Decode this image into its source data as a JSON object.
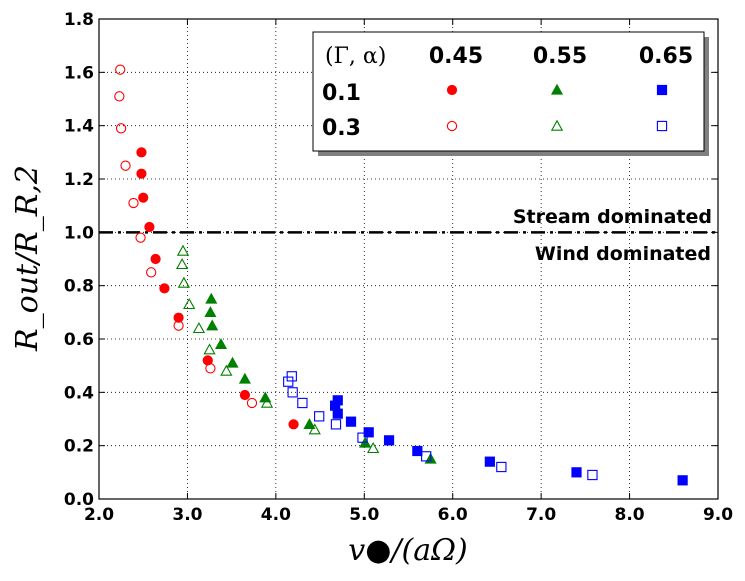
{
  "chart_data": {
    "type": "scatter",
    "xlabel": "v●/(aΩ)",
    "ylabel": "R_out/R_R,2",
    "xlim": [
      2.0,
      9.0
    ],
    "ylim": [
      0.0,
      1.8
    ],
    "xticks": [
      2.0,
      3.0,
      4.0,
      5.0,
      6.0,
      7.0,
      8.0,
      9.0
    ],
    "xtick_labels": [
      "2.0",
      "3.0",
      "4.0",
      "5.0",
      "6.0",
      "7.0",
      "8.0",
      "9.0"
    ],
    "yticks": [
      0.0,
      0.2,
      0.4,
      0.6,
      0.8,
      1.0,
      1.2,
      1.4,
      1.6,
      1.8
    ],
    "ytick_labels": [
      "0.0",
      "0.2",
      "0.4",
      "0.6",
      "0.8",
      "1.0",
      "1.2",
      "1.4",
      "1.6",
      "1.8"
    ],
    "grid": true,
    "reference_line": {
      "y": 1.0,
      "style": "dash-dot"
    },
    "annotations": [
      "Stream dominated",
      "Wind dominated"
    ],
    "legend": {
      "placement": "top-right",
      "header": "(Γ, α)",
      "columns": [
        "0.45",
        "0.55",
        "0.65"
      ],
      "rows": [
        "0.1",
        "0.3"
      ]
    },
    "series": [
      {
        "name": "Γ=0.45, α=0.1",
        "marker": "circle",
        "filled": true,
        "color": "#ff0000",
        "points": [
          [
            2.48,
            1.3
          ],
          [
            2.48,
            1.22
          ],
          [
            2.5,
            1.13
          ],
          [
            2.57,
            1.02
          ],
          [
            2.64,
            0.9
          ],
          [
            2.74,
            0.79
          ],
          [
            2.9,
            0.68
          ],
          [
            3.23,
            0.52
          ],
          [
            3.65,
            0.39
          ],
          [
            4.2,
            0.28
          ]
        ]
      },
      {
        "name": "Γ=0.45, α=0.3",
        "marker": "circle",
        "filled": false,
        "color": "#ff0000",
        "points": [
          [
            2.24,
            1.61
          ],
          [
            2.23,
            1.51
          ],
          [
            2.25,
            1.39
          ],
          [
            2.3,
            1.25
          ],
          [
            2.39,
            1.11
          ],
          [
            2.47,
            0.98
          ],
          [
            2.59,
            0.85
          ],
          [
            2.9,
            0.65
          ],
          [
            3.26,
            0.49
          ],
          [
            3.73,
            0.36
          ]
        ]
      },
      {
        "name": "Γ=0.55, α=0.1",
        "marker": "triangle",
        "filled": true,
        "color": "#008000",
        "points": [
          [
            3.27,
            0.75
          ],
          [
            3.26,
            0.7
          ],
          [
            3.28,
            0.65
          ],
          [
            3.38,
            0.58
          ],
          [
            3.51,
            0.51
          ],
          [
            3.65,
            0.45
          ],
          [
            3.88,
            0.38
          ],
          [
            4.38,
            0.28
          ],
          [
            5.01,
            0.21
          ],
          [
            5.75,
            0.15
          ]
        ]
      },
      {
        "name": "Γ=0.55, α=0.3",
        "marker": "triangle",
        "filled": false,
        "color": "#008000",
        "points": [
          [
            2.95,
            0.93
          ],
          [
            2.94,
            0.88
          ],
          [
            2.96,
            0.81
          ],
          [
            3.02,
            0.73
          ],
          [
            3.13,
            0.64
          ],
          [
            3.25,
            0.56
          ],
          [
            3.44,
            0.48
          ],
          [
            3.9,
            0.36
          ],
          [
            4.44,
            0.26
          ],
          [
            5.1,
            0.19
          ]
        ]
      },
      {
        "name": "Γ=0.65, α=0.1",
        "marker": "square",
        "filled": true,
        "color": "#0000ff",
        "points": [
          [
            4.7,
            0.37
          ],
          [
            4.67,
            0.35
          ],
          [
            4.7,
            0.32
          ],
          [
            4.85,
            0.29
          ],
          [
            5.05,
            0.25
          ],
          [
            5.28,
            0.22
          ],
          [
            5.6,
            0.18
          ],
          [
            6.42,
            0.14
          ],
          [
            7.4,
            0.1
          ],
          [
            8.6,
            0.07
          ]
        ]
      },
      {
        "name": "Γ=0.65, α=0.3",
        "marker": "square",
        "filled": false,
        "color": "#0000ff",
        "points": [
          [
            4.18,
            0.46
          ],
          [
            4.14,
            0.44
          ],
          [
            4.19,
            0.4
          ],
          [
            4.3,
            0.36
          ],
          [
            4.49,
            0.31
          ],
          [
            4.68,
            0.28
          ],
          [
            4.98,
            0.23
          ],
          [
            5.7,
            0.16
          ],
          [
            6.55,
            0.12
          ],
          [
            7.58,
            0.09
          ]
        ]
      }
    ]
  }
}
